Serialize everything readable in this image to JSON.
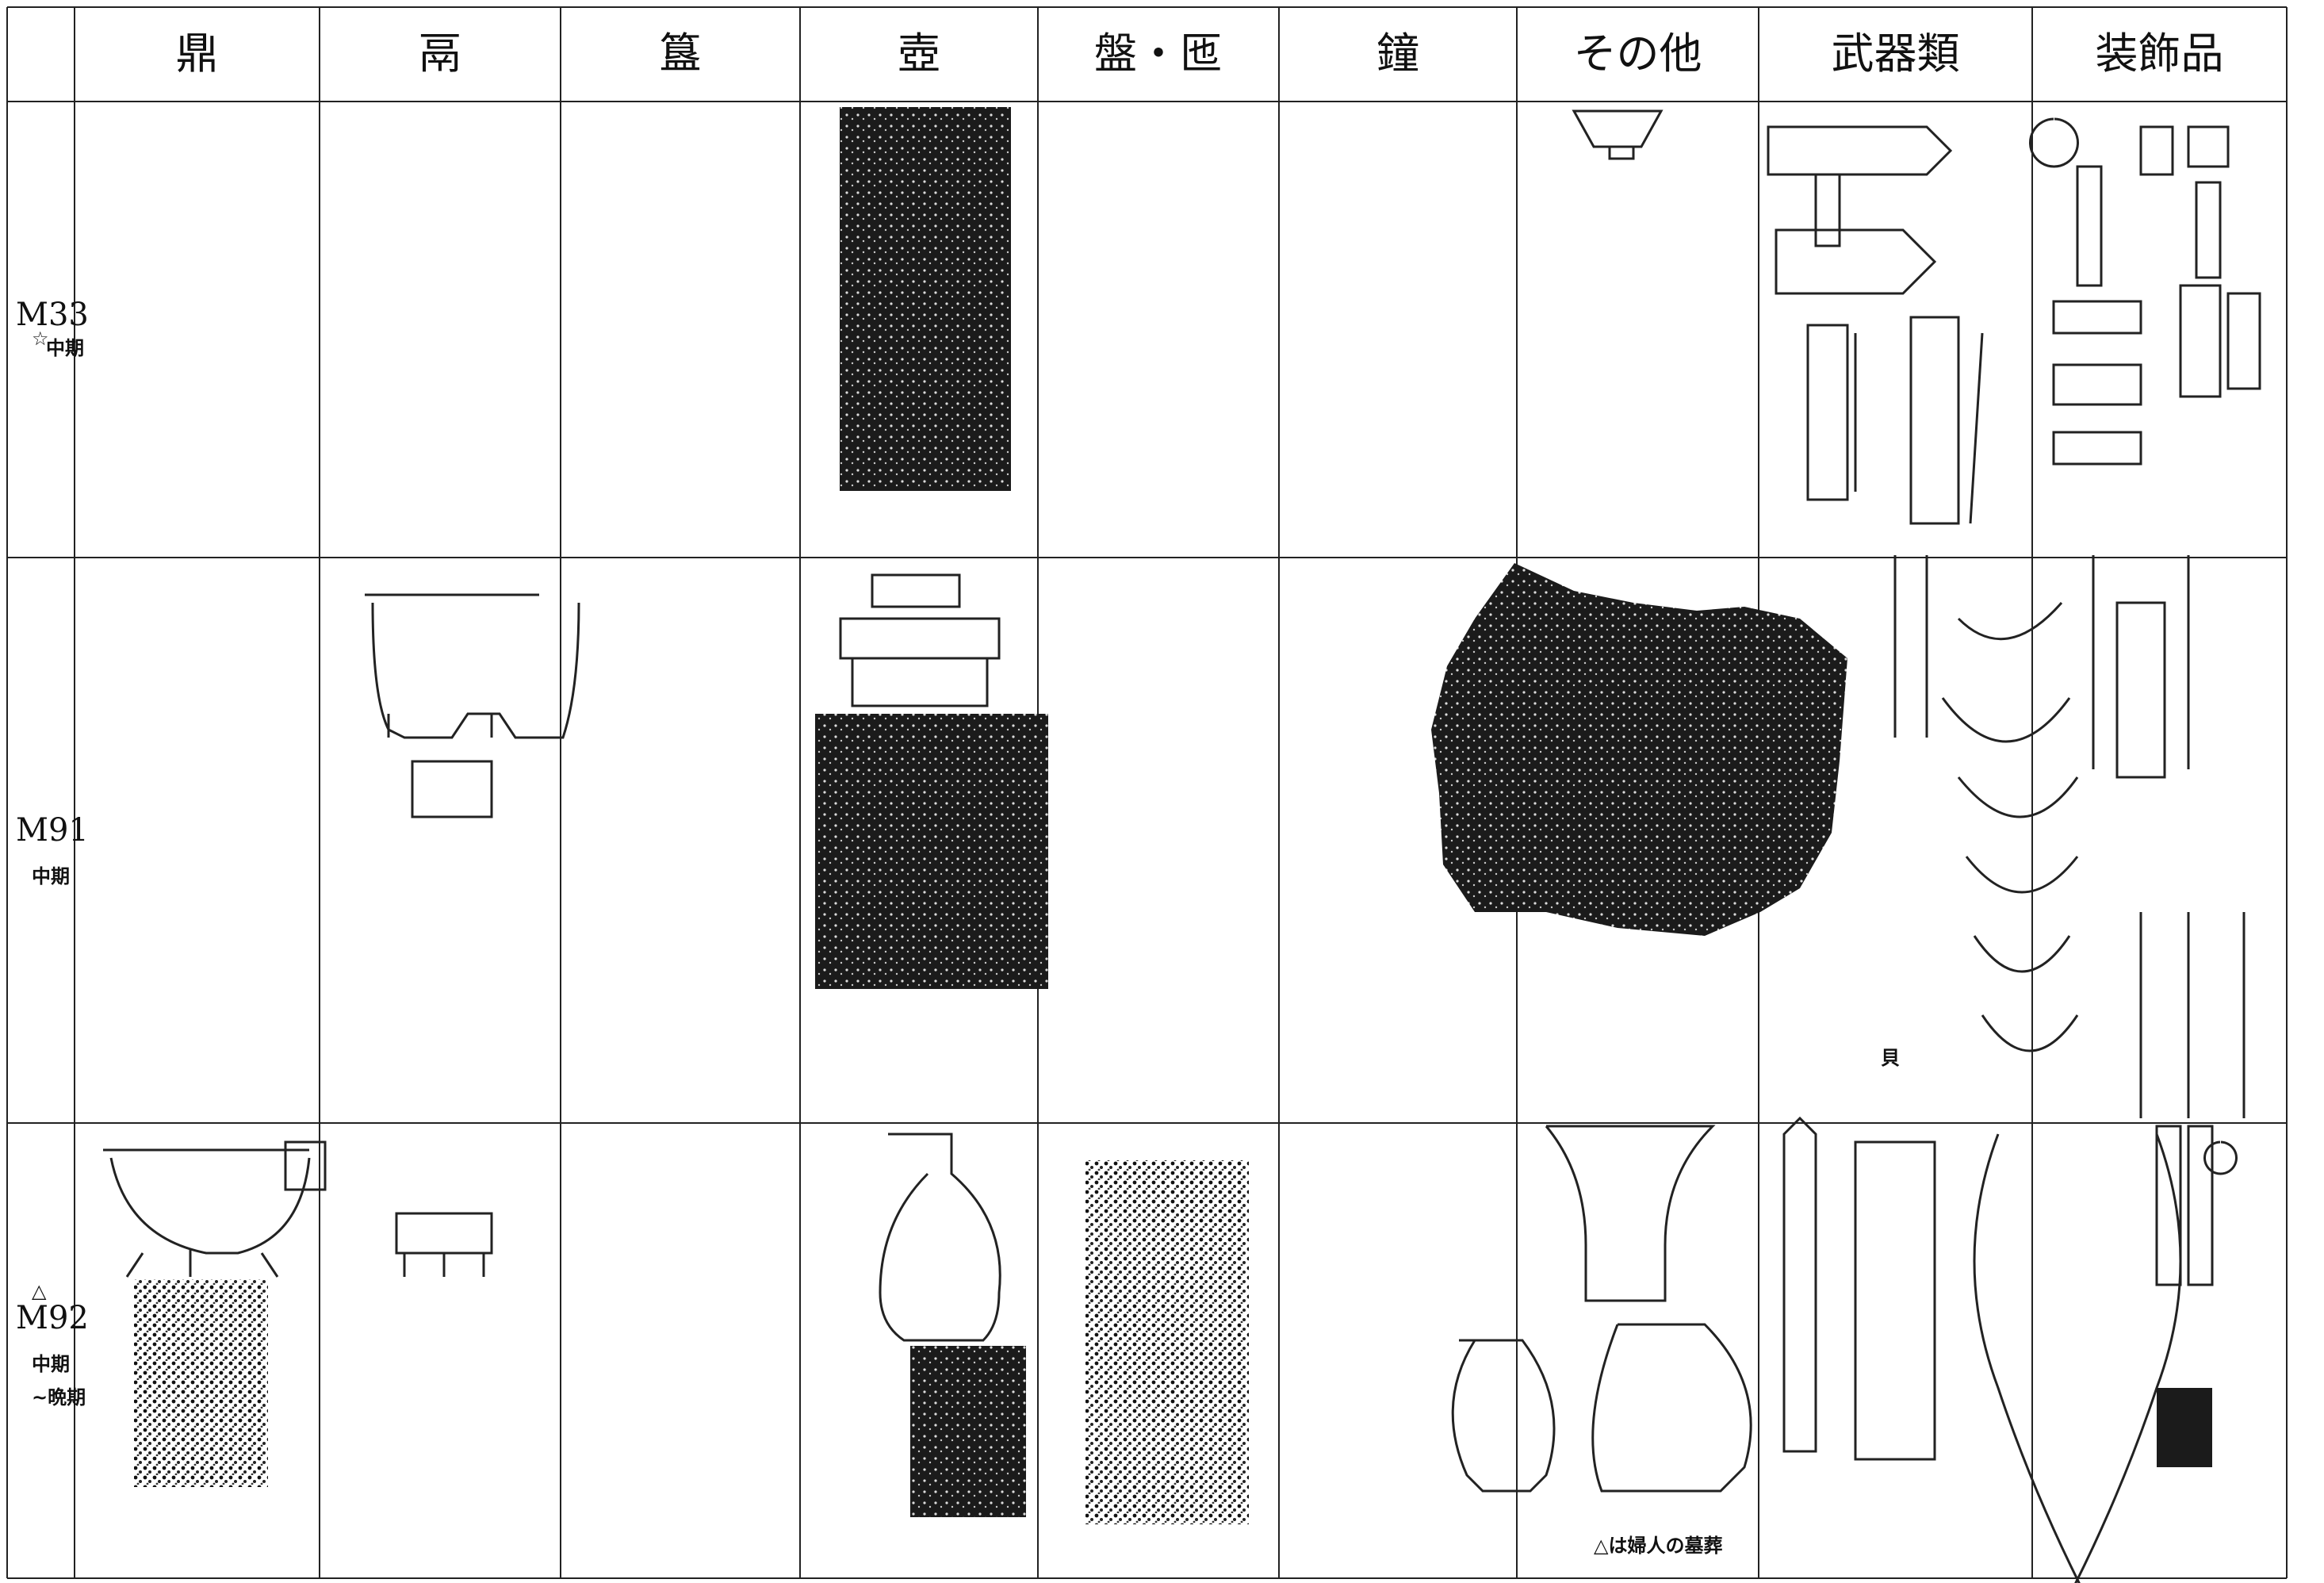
{
  "table": {
    "header": [
      "鼎",
      "鬲",
      "簋",
      "壺",
      "盤・匜",
      "鐘",
      "その他",
      "武器類",
      "装飾品"
    ],
    "rows": [
      {
        "tomb": "M33",
        "mark": "☆",
        "period": [
          "中期"
        ]
      },
      {
        "tomb": "M91",
        "period": [
          "中期"
        ]
      },
      {
        "tomb": "M92",
        "mark": "△",
        "period": [
          "中期",
          "~晩期"
        ]
      }
    ]
  },
  "notes": {
    "shell": "貝",
    "legend": "△は婦人の墓葬"
  }
}
